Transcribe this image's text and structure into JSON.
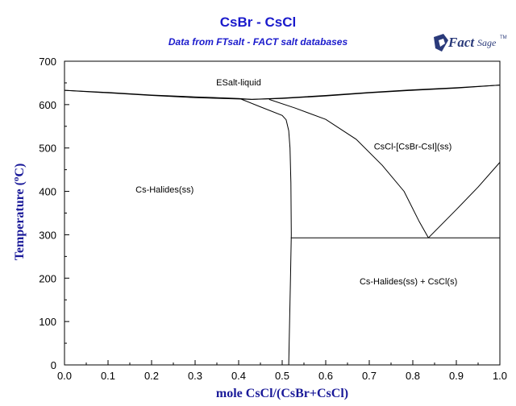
{
  "chart_data": {
    "type": "line",
    "title": "CsBr - CsCl",
    "subtitle": "Data from FTsalt - FACT salt databases",
    "xlabel": "mole CsCl/(CsBr+CsCl)",
    "ylabel_prefix": "Temperature (",
    "ylabel_degree": "o",
    "ylabel_suffix": "C)",
    "xlim": [
      0.0,
      1.0
    ],
    "ylim": [
      0,
      700
    ],
    "x_ticks": [
      0.0,
      0.1,
      0.2,
      0.3,
      0.4,
      0.5,
      0.6,
      0.7,
      0.8,
      0.9,
      1.0
    ],
    "x_tick_labels": [
      "0.0",
      "0.1",
      "0.2",
      "0.3",
      "0.4",
      "0.5",
      "0.6",
      "0.7",
      "0.8",
      "0.9",
      "1.0"
    ],
    "y_ticks": [
      0,
      100,
      200,
      300,
      400,
      500,
      600,
      700
    ],
    "y_tick_labels": [
      "0",
      "100",
      "200",
      "300",
      "400",
      "500",
      "600",
      "700"
    ],
    "grid": false,
    "curves": [
      {
        "points": [
          [
            0.0,
            633
          ],
          [
            0.1,
            628
          ],
          [
            0.2,
            622
          ],
          [
            0.3,
            618
          ],
          [
            0.4,
            614
          ],
          [
            0.43,
            612
          ]
        ]
      },
      {
        "points": [
          [
            0.43,
            612
          ],
          [
            0.5,
            615
          ],
          [
            0.6,
            621
          ],
          [
            0.7,
            628
          ],
          [
            0.8,
            634
          ],
          [
            0.9,
            639
          ],
          [
            1.0,
            645
          ]
        ]
      },
      {
        "points": [
          [
            0.0,
            633
          ],
          [
            0.1,
            627
          ],
          [
            0.2,
            621
          ],
          [
            0.3,
            616
          ],
          [
            0.4,
            613
          ],
          [
            0.43,
            612
          ]
        ]
      },
      {
        "points": [
          [
            0.43,
            612
          ],
          [
            0.5,
            614
          ],
          [
            0.6,
            620
          ],
          [
            0.7,
            627
          ],
          [
            0.8,
            633
          ],
          [
            0.9,
            638
          ],
          [
            1.0,
            645
          ]
        ]
      },
      {
        "points": [
          [
            0.405,
            613
          ],
          [
            0.45,
            595
          ],
          [
            0.5,
            575
          ],
          [
            0.509,
            565
          ],
          [
            0.515,
            540
          ],
          [
            0.518,
            500
          ],
          [
            0.52,
            420
          ],
          [
            0.521,
            300
          ],
          [
            0.519,
            200
          ],
          [
            0.517,
            100
          ],
          [
            0.515,
            0
          ]
        ]
      },
      {
        "points": [
          [
            0.47,
            612
          ],
          [
            0.53,
            592
          ],
          [
            0.6,
            566
          ],
          [
            0.67,
            520
          ],
          [
            0.73,
            460
          ],
          [
            0.78,
            400
          ],
          [
            0.815,
            330
          ],
          [
            0.836,
            293
          ]
        ]
      },
      {
        "points": [
          [
            0.836,
            293
          ],
          [
            0.9,
            358
          ],
          [
            0.95,
            410
          ],
          [
            1.0,
            467
          ]
        ]
      },
      {
        "points": [
          [
            0.52,
            293
          ],
          [
            1.0,
            293
          ]
        ]
      }
    ],
    "annotations": [
      {
        "text": "ESalt-liquid",
        "x": 0.4,
        "y": 652
      },
      {
        "text": "CsCl-[CsBr-CsI](ss)",
        "x": 0.8,
        "y": 504
      },
      {
        "text": "Cs-Halides(ss)",
        "x": 0.23,
        "y": 405
      },
      {
        "text": "Cs-Halides(ss) + CsCl(s)",
        "x": 0.79,
        "y": 193
      }
    ]
  },
  "logo": {
    "part1": "Fact",
    "part2": "Sage",
    "mark": "TM"
  }
}
